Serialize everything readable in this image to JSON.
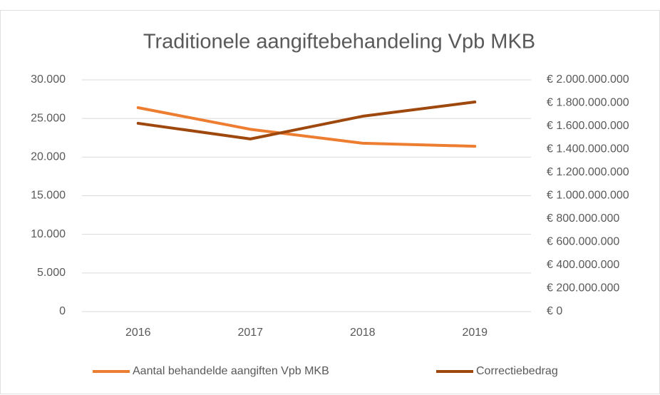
{
  "chart_data": {
    "type": "line",
    "title": "Traditionele aangiftebehandeling Vpb MKB",
    "categories": [
      "2016",
      "2017",
      "2018",
      "2019"
    ],
    "series": [
      {
        "name": "Aantal behandelde aangiften Vpb MKB",
        "color": "#ed7d31",
        "values": [
          26400,
          23600,
          21800,
          21400
        ]
      },
      {
        "name": "Correctiebedrag",
        "color": "#9e480e",
        "axis": "y2",
        "values": [
          1625000000,
          1490000000,
          1686000000,
          1809000000
        ]
      }
    ],
    "ylim": [
      0,
      30000
    ],
    "yticks": [
      0,
      {
        "value": 5000,
        "label": "5.000"
      },
      {
        "value": 10000,
        "label": "10.000"
      },
      {
        "value": 15000,
        "label": "15.000"
      },
      {
        "value": 20000,
        "label": "20.000"
      },
      {
        "value": 25000,
        "label": "25.000"
      },
      {
        "value": 30000,
        "label": "30.000"
      }
    ],
    "y2lim": [
      0,
      2000000000
    ],
    "y2ticks": [
      {
        "value": 0,
        "label": "€ 0"
      },
      {
        "value": 200000000,
        "label": "€ 200.000.000"
      },
      {
        "value": 400000000,
        "label": "€ 400.000.000"
      },
      {
        "value": 600000000,
        "label": "€ 600.000.000"
      },
      {
        "value": 800000000,
        "label": "€ 800.000.000"
      },
      {
        "value": 1000000000,
        "label": "€ 1.000.000.000"
      },
      {
        "value": 1200000000,
        "label": "€ 1.200.000.000"
      },
      {
        "value": 1400000000,
        "label": "€ 1.400.000.000"
      },
      {
        "value": 1600000000,
        "label": "€ 1.600.000.000"
      },
      {
        "value": 1800000000,
        "label": "€ 1.800.000.000"
      },
      {
        "value": 2000000000,
        "label": "€ 2.000.000.000"
      }
    ],
    "grid": true,
    "legend": "bottom"
  }
}
